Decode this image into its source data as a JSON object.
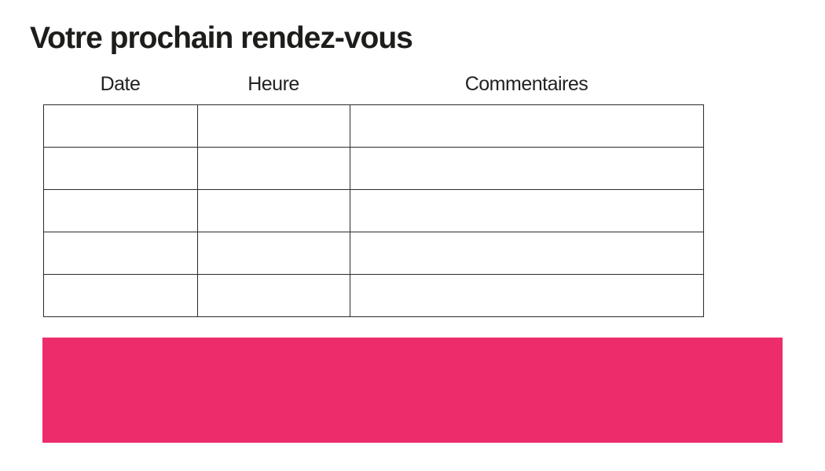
{
  "page": {
    "title": "Votre prochain rendez-vous"
  },
  "table": {
    "columns": [
      {
        "label": "Date"
      },
      {
        "label": "Heure"
      },
      {
        "label": "Commentaires"
      }
    ],
    "rows": [
      [
        "",
        "",
        ""
      ],
      [
        "",
        "",
        ""
      ],
      [
        "",
        "",
        ""
      ],
      [
        "",
        "",
        ""
      ],
      [
        "",
        "",
        ""
      ]
    ]
  },
  "banner": {
    "color": "#ED2C6C"
  },
  "colors": {
    "title_text": "#1D1D1B",
    "header_text": "#222222",
    "table_border": "#2B2B2B",
    "background": "#FFFFFF"
  }
}
